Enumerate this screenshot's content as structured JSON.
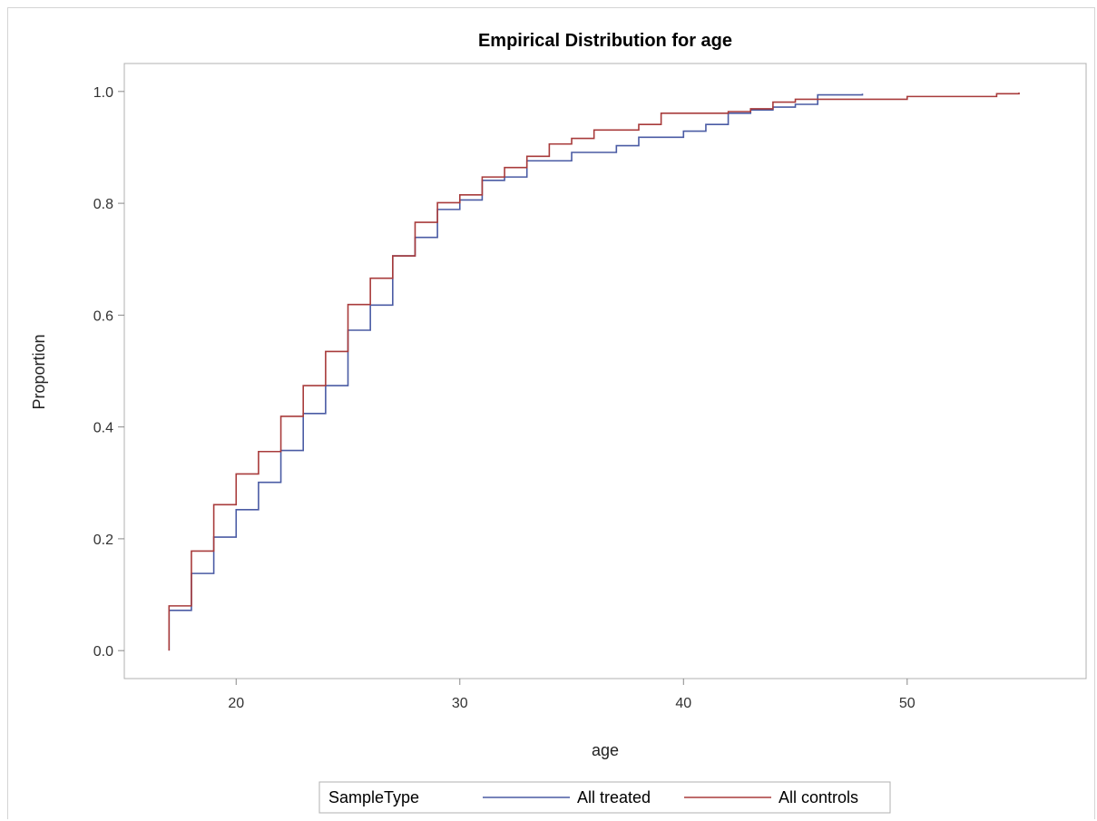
{
  "chart_data": {
    "type": "line",
    "title": "Empirical Distribution for age",
    "xlabel": "age",
    "ylabel": "Proportion",
    "xlim": [
      15,
      58
    ],
    "ylim": [
      -0.05,
      1.05
    ],
    "xticks": [
      20,
      30,
      40,
      50
    ],
    "yticks": [
      0.0,
      0.2,
      0.4,
      0.6,
      0.8,
      1.0
    ],
    "xtick_labels": [
      "20",
      "30",
      "40",
      "50"
    ],
    "ytick_labels": [
      "0.0",
      "0.2",
      "0.4",
      "0.6",
      "0.8",
      "1.0"
    ],
    "grid": false,
    "step": true,
    "legend": {
      "title": "SampleType",
      "position": "bottom-center"
    },
    "series": [
      {
        "name": "All treated",
        "color": "#4a5ba4",
        "x": [
          17,
          17,
          18,
          19,
          20,
          21,
          22,
          23,
          24,
          25,
          26,
          27,
          28,
          29,
          30,
          31,
          32,
          33,
          34,
          35,
          36,
          37,
          38,
          39,
          40,
          41,
          42,
          43,
          44,
          45,
          46,
          47,
          48
        ],
        "y": [
          0.0,
          0.072,
          0.138,
          0.203,
          0.252,
          0.301,
          0.358,
          0.424,
          0.474,
          0.573,
          0.618,
          0.706,
          0.739,
          0.789,
          0.806,
          0.841,
          0.847,
          0.876,
          0.876,
          0.891,
          0.891,
          0.903,
          0.918,
          0.918,
          0.929,
          0.941,
          0.961,
          0.967,
          0.972,
          0.977,
          0.994,
          0.994,
          0.996
        ]
      },
      {
        "name": "All controls",
        "color": "#a83b3b",
        "x": [
          17,
          17,
          18,
          19,
          20,
          21,
          22,
          23,
          24,
          25,
          26,
          27,
          28,
          29,
          30,
          31,
          32,
          33,
          34,
          35,
          36,
          37,
          38,
          39,
          40,
          41,
          42,
          43,
          44,
          45,
          46,
          47,
          48,
          50,
          52,
          54,
          55
        ],
        "y": [
          0.0,
          0.08,
          0.178,
          0.261,
          0.316,
          0.356,
          0.419,
          0.474,
          0.535,
          0.619,
          0.666,
          0.706,
          0.766,
          0.801,
          0.815,
          0.847,
          0.864,
          0.884,
          0.906,
          0.916,
          0.931,
          0.931,
          0.941,
          0.961,
          0.961,
          0.961,
          0.964,
          0.969,
          0.981,
          0.986,
          0.986,
          0.986,
          0.986,
          0.991,
          0.991,
          0.996,
          0.998
        ]
      }
    ]
  }
}
